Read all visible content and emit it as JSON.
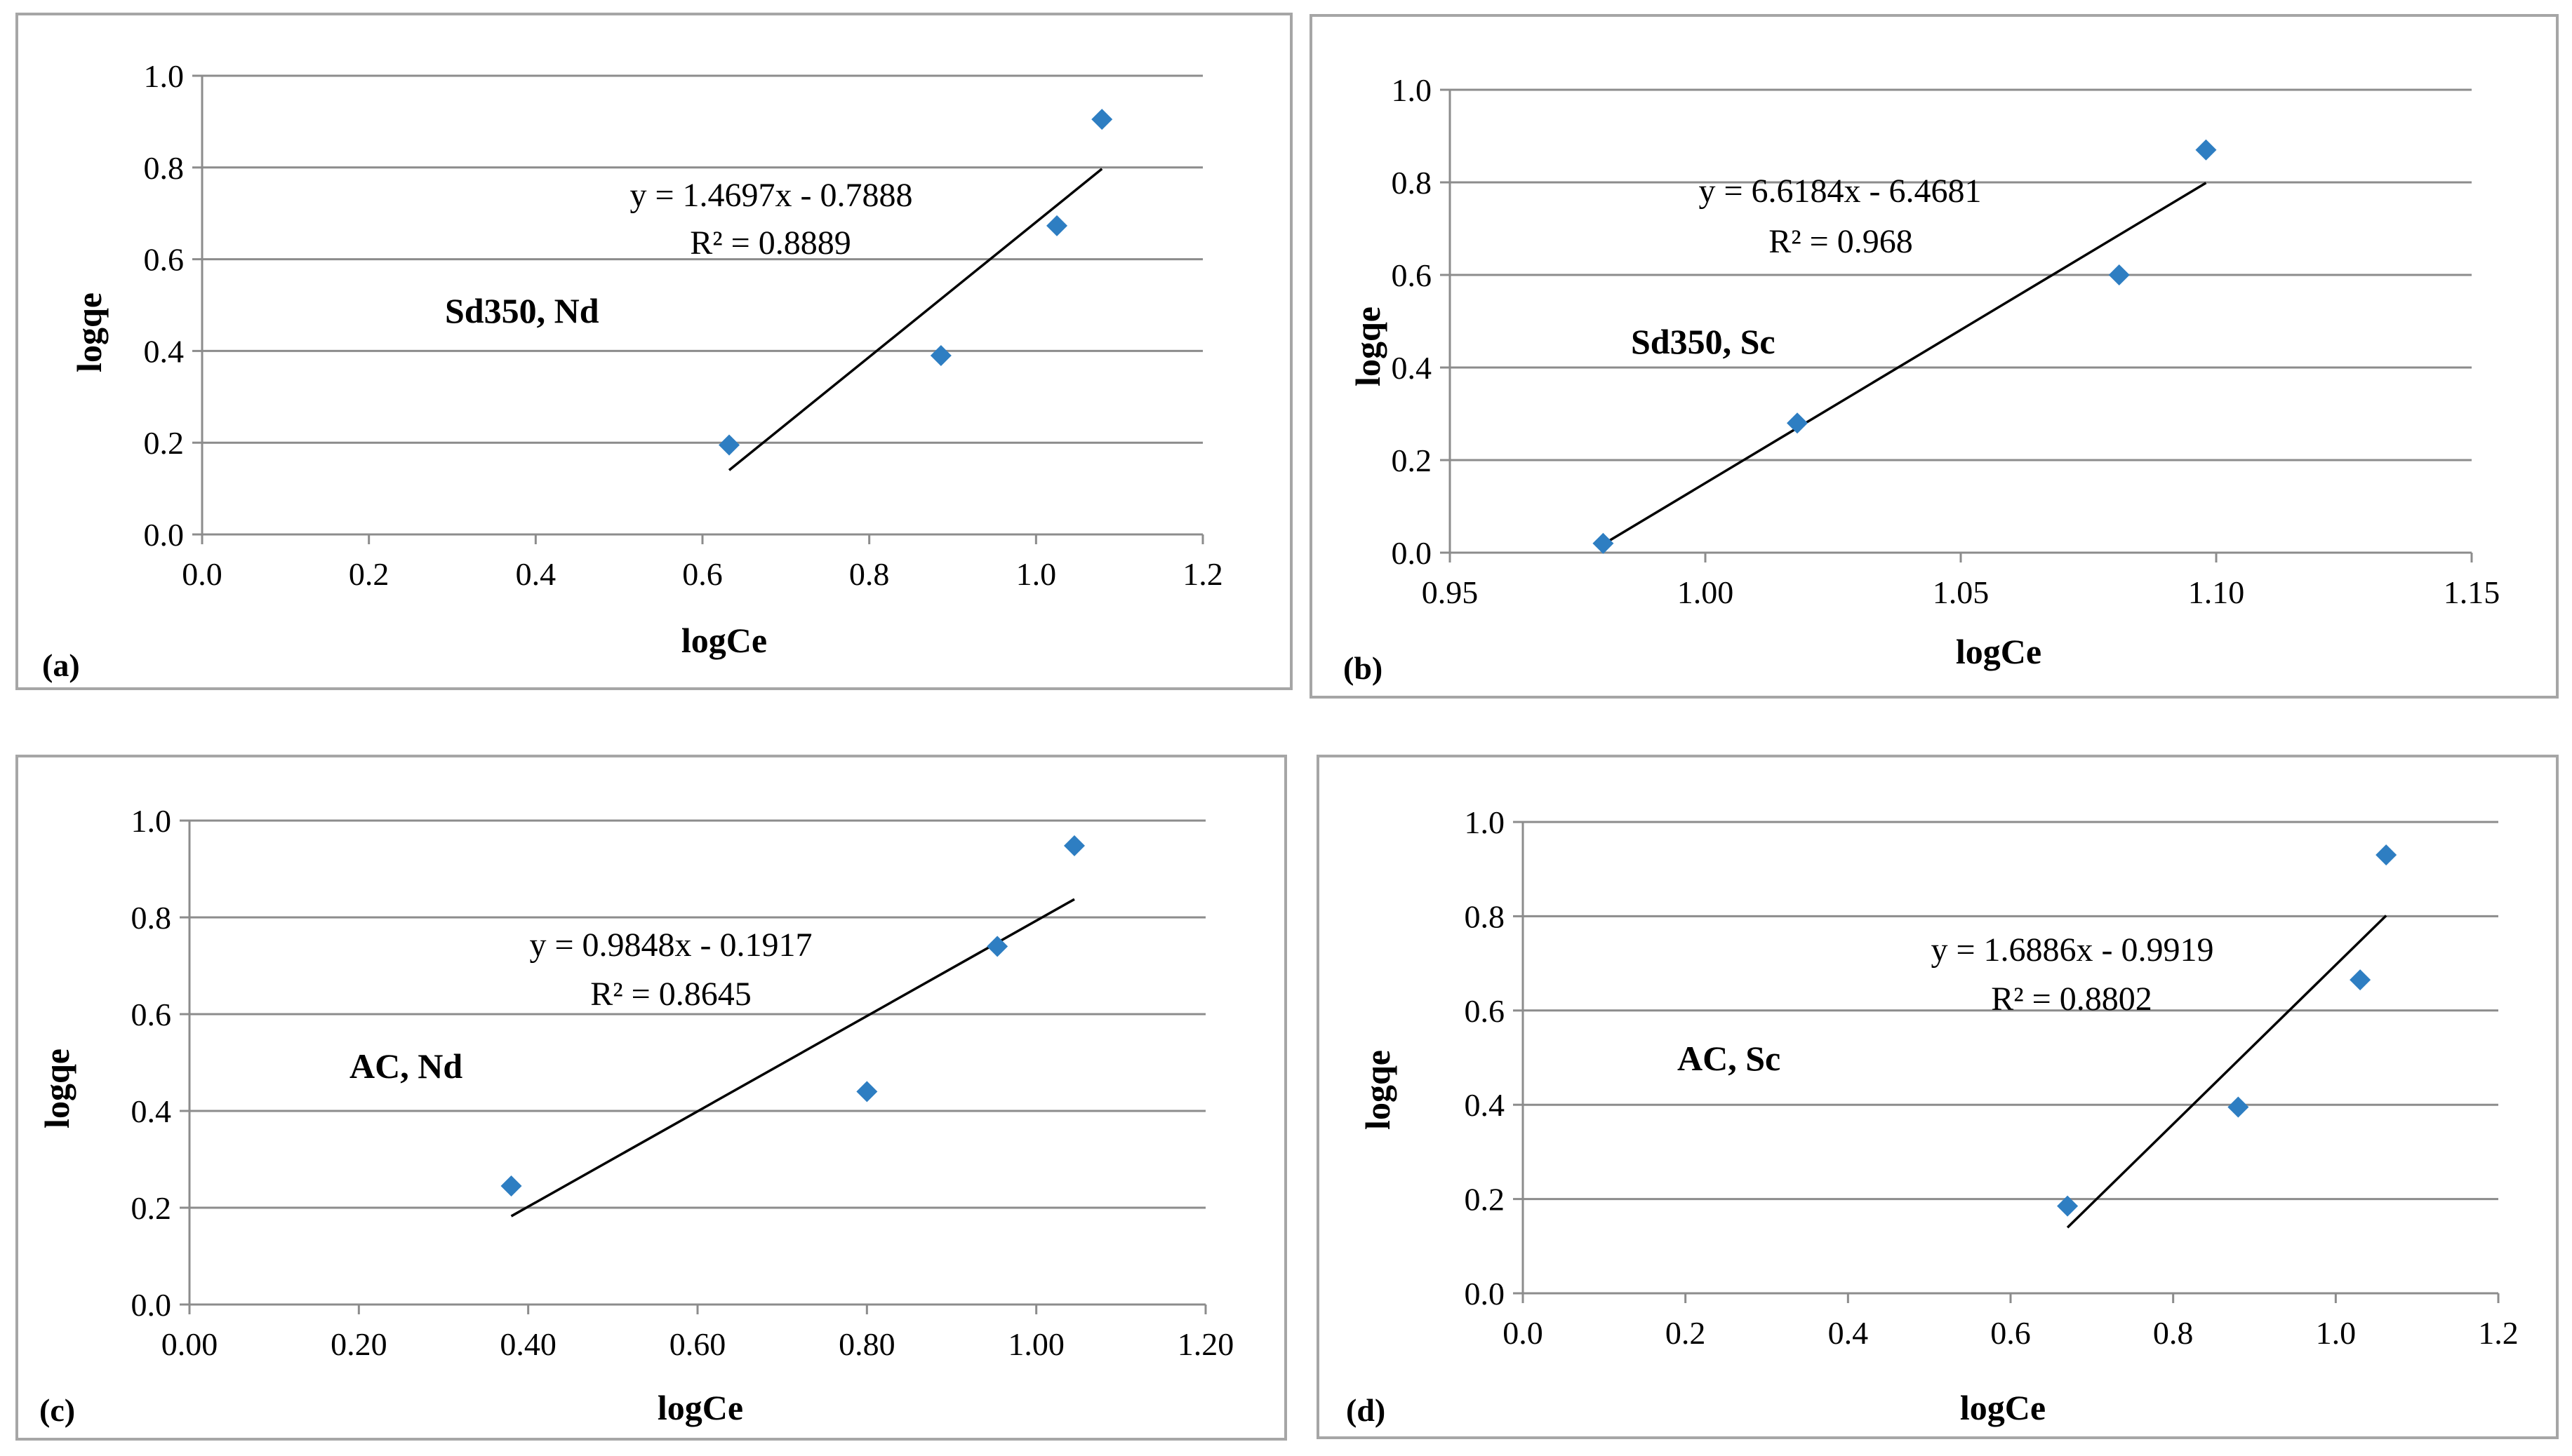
{
  "colors": {
    "marker": "#2e7ec2",
    "trendline": "#000000",
    "grid": "#8c8c8c",
    "border": "#a6a6a6"
  },
  "chart_data": [
    {
      "id": "a",
      "panel_tag": "(a)",
      "type": "scatter",
      "series_label": "Sd350, Nd",
      "xlabel": "logCe",
      "ylabel": "logqe",
      "xlim": [
        0,
        1.2
      ],
      "ylim": [
        0,
        1.0
      ],
      "x_ticks": [
        "0.0",
        "0.2",
        "0.4",
        "0.6",
        "0.8",
        "1.0",
        "1.2"
      ],
      "y_ticks": [
        "0.0",
        "0.2",
        "0.4",
        "0.6",
        "0.8",
        "1.0"
      ],
      "points": [
        {
          "x": 0.632,
          "y": 0.195
        },
        {
          "x": 0.886,
          "y": 0.39
        },
        {
          "x": 1.025,
          "y": 0.673
        },
        {
          "x": 1.079,
          "y": 0.905
        }
      ],
      "trendline": {
        "slope": 1.4697,
        "intercept": -0.7888,
        "x_from": 0.632,
        "x_to": 1.079
      },
      "equation": "y = 1.4697x - 0.7888",
      "r_squared": "R² = 0.8889"
    },
    {
      "id": "b",
      "panel_tag": "(b)",
      "type": "scatter",
      "series_label": "Sd350, Sc",
      "xlabel": "logCe",
      "ylabel": "logqe",
      "xlim": [
        0.95,
        1.15
      ],
      "ylim": [
        0,
        1.0
      ],
      "x_ticks": [
        "0.95",
        "1.00",
        "1.05",
        "1.10",
        "1.15"
      ],
      "y_ticks": [
        "0.0",
        "0.2",
        "0.4",
        "0.6",
        "0.8",
        "1.0"
      ],
      "points": [
        {
          "x": 0.98,
          "y": 0.02
        },
        {
          "x": 1.018,
          "y": 0.28
        },
        {
          "x": 1.081,
          "y": 0.6
        },
        {
          "x": 1.098,
          "y": 0.87
        }
      ],
      "trendline": {
        "slope": 6.6184,
        "intercept": -6.4681,
        "x_from": 0.98,
        "x_to": 1.098
      },
      "equation": "y = 6.6184x - 6.4681",
      "r_squared": "R² = 0.968"
    },
    {
      "id": "c",
      "panel_tag": "(c)",
      "type": "scatter",
      "series_label": "AC, Nd",
      "xlabel": "logCe",
      "ylabel": "logqe",
      "xlim": [
        0,
        1.2
      ],
      "ylim": [
        0,
        1.0
      ],
      "x_ticks": [
        "0.00",
        "0.20",
        "0.40",
        "0.60",
        "0.80",
        "1.00",
        "1.20"
      ],
      "y_ticks": [
        "0.0",
        "0.2",
        "0.4",
        "0.6",
        "0.8",
        "1.0"
      ],
      "points": [
        {
          "x": 0.38,
          "y": 0.245
        },
        {
          "x": 0.8,
          "y": 0.44
        },
        {
          "x": 0.954,
          "y": 0.74
        },
        {
          "x": 1.045,
          "y": 0.948
        }
      ],
      "trendline": {
        "slope": 0.9848,
        "intercept": -0.1917,
        "x_from": 0.38,
        "x_to": 1.045
      },
      "equation": "y = 0.9848x - 0.1917",
      "r_squared": "R² = 0.8645"
    },
    {
      "id": "d",
      "panel_tag": "(d)",
      "type": "scatter",
      "series_label": "AC, Sc",
      "xlabel": "logCe",
      "ylabel": "logqe",
      "xlim": [
        0,
        1.2
      ],
      "ylim": [
        0,
        1.0
      ],
      "x_ticks": [
        "0.0",
        "0.2",
        "0.4",
        "0.6",
        "0.8",
        "1.0",
        "1.2"
      ],
      "y_ticks": [
        "0.0",
        "0.2",
        "0.4",
        "0.6",
        "0.8",
        "1.0"
      ],
      "points": [
        {
          "x": 0.67,
          "y": 0.185
        },
        {
          "x": 0.88,
          "y": 0.395
        },
        {
          "x": 1.03,
          "y": 0.665
        },
        {
          "x": 1.062,
          "y": 0.93
        }
      ],
      "trendline": {
        "slope": 1.6886,
        "intercept": -0.9919,
        "x_from": 0.67,
        "x_to": 1.062
      },
      "equation": "y = 1.6886x - 0.9919",
      "r_squared": "R² = 0.8802"
    }
  ]
}
